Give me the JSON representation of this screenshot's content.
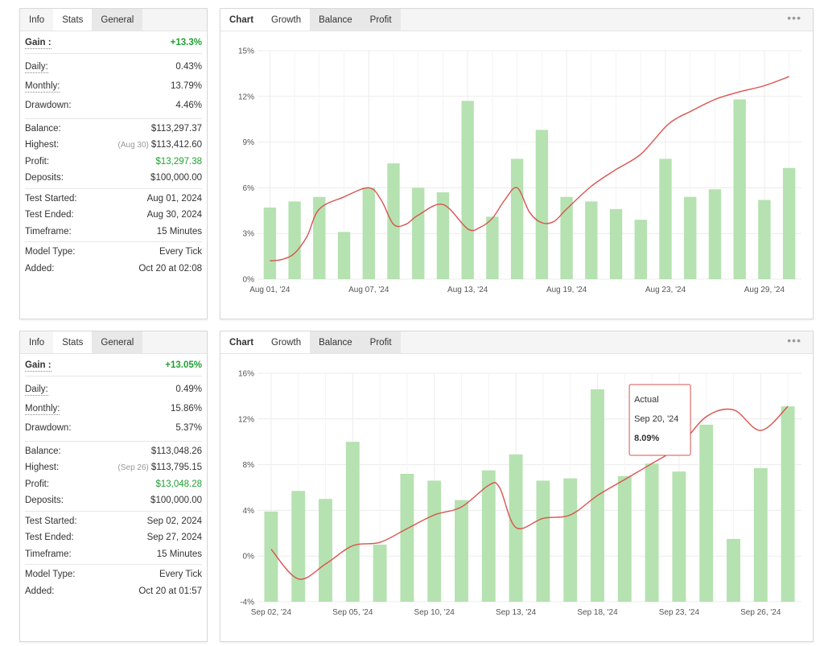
{
  "widgets": [
    {
      "tabs": [
        "Info",
        "Stats",
        "General"
      ],
      "stats": {
        "gain_label": "Gain :",
        "gain_value": "+13.3%",
        "daily_label": "Daily:",
        "daily_value": "0.43%",
        "monthly_label": "Monthly:",
        "monthly_value": "13.79%",
        "drawdown_label": "Drawdown:",
        "drawdown_value": "4.46%",
        "balance_label": "Balance:",
        "balance_value": "$113,297.37",
        "highest_label": "Highest:",
        "highest_date": "(Aug 30)",
        "highest_value": "$113,412.60",
        "profit_label": "Profit:",
        "profit_value": "$13,297.38",
        "deposits_label": "Deposits:",
        "deposits_value": "$100,000.00",
        "started_label": "Test Started:",
        "started_value": "Aug 01, 2024",
        "ended_label": "Test Ended:",
        "ended_value": "Aug 30, 2024",
        "timeframe_label": "Timeframe:",
        "timeframe_value": "15 Minutes",
        "model_label": "Model Type:",
        "model_value": "Every Tick",
        "added_label": "Added:",
        "added_value": "Oct 20 at 02:08"
      },
      "chart_tabs": [
        "Chart",
        "Growth",
        "Balance",
        "Profit"
      ],
      "menu_icon": "more-dots-icon"
    },
    {
      "tabs": [
        "Info",
        "Stats",
        "General"
      ],
      "stats": {
        "gain_label": "Gain :",
        "gain_value": "+13.05%",
        "daily_label": "Daily:",
        "daily_value": "0.49%",
        "monthly_label": "Monthly:",
        "monthly_value": "15.86%",
        "drawdown_label": "Drawdown:",
        "drawdown_value": "5.37%",
        "balance_label": "Balance:",
        "balance_value": "$113,048.26",
        "highest_label": "Highest:",
        "highest_date": "(Sep 26)",
        "highest_value": "$113,795.15",
        "profit_label": "Profit:",
        "profit_value": "$13,048.28",
        "deposits_label": "Deposits:",
        "deposits_value": "$100,000.00",
        "started_label": "Test Started:",
        "started_value": "Sep 02, 2024",
        "ended_label": "Test Ended:",
        "ended_value": "Sep 27, 2024",
        "timeframe_label": "Timeframe:",
        "timeframe_value": "15 Minutes",
        "model_label": "Model Type:",
        "model_value": "Every Tick",
        "added_label": "Added:",
        "added_value": "Oct 20 at 01:57"
      },
      "chart_tabs": [
        "Chart",
        "Growth",
        "Balance",
        "Profit"
      ],
      "menu_icon": "more-dots-icon"
    }
  ],
  "colors": {
    "bar": "#b5e2b0",
    "line": "#d9534f",
    "grid": "#ececec",
    "green_text": "#22a033"
  },
  "chart_data": [
    {
      "type": "bar+line",
      "title": "",
      "ylim": [
        0,
        15
      ],
      "yticks": [
        "0%",
        "3%",
        "6%",
        "9%",
        "12%",
        "15%"
      ],
      "ytick_values": [
        0,
        3,
        6,
        9,
        12,
        15
      ],
      "xtick_labels": [
        "Aug 01, '24",
        "Aug 07, '24",
        "Aug 13, '24",
        "Aug 19, '24",
        "Aug 23, '24",
        "Aug 29, '24"
      ],
      "xtick_indices": [
        0,
        4,
        8,
        12,
        16,
        20
      ],
      "bars": [
        4.7,
        5.1,
        5.4,
        3.1,
        6.0,
        7.6,
        6.0,
        5.7,
        11.7,
        4.1,
        7.9,
        9.8,
        5.4,
        5.1,
        4.6,
        3.9,
        7.9,
        5.4,
        5.9,
        11.8,
        5.2,
        7.3
      ],
      "line_x": [
        0,
        0.5,
        1,
        1.5,
        2,
        3,
        4,
        4.5,
        5,
        5.5,
        6,
        7,
        8,
        8.5,
        9,
        9.5,
        10,
        10.5,
        11,
        11.5,
        12,
        13,
        14,
        15,
        16,
        16.5,
        17,
        18,
        19,
        20,
        21
      ],
      "line_y": [
        1.2,
        1.3,
        1.7,
        2.8,
        4.6,
        5.4,
        6.0,
        5.2,
        3.6,
        3.6,
        4.2,
        4.9,
        3.3,
        3.4,
        4.0,
        5.2,
        6.0,
        4.4,
        3.7,
        3.8,
        4.6,
        6.1,
        7.2,
        8.2,
        10.0,
        10.6,
        11.0,
        11.8,
        12.3,
        12.7,
        13.3
      ],
      "tooltip": null
    },
    {
      "type": "bar+line",
      "title": "",
      "ylim": [
        -4,
        16
      ],
      "yticks": [
        "-4%",
        "0%",
        "4%",
        "8%",
        "12%",
        "16%"
      ],
      "ytick_values": [
        -4,
        0,
        4,
        8,
        12,
        16
      ],
      "xtick_labels": [
        "Sep 02, '24",
        "Sep 05, '24",
        "Sep 10, '24",
        "Sep 13, '24",
        "Sep 18, '24",
        "Sep 23, '24",
        "Sep 26, '24"
      ],
      "xtick_indices": [
        0,
        3,
        6,
        9,
        12,
        15,
        18
      ],
      "bars": [
        3.9,
        5.7,
        5.0,
        10.0,
        1.0,
        7.2,
        6.6,
        4.9,
        7.5,
        8.9,
        6.6,
        6.8,
        14.6,
        7.0,
        8.1,
        7.4,
        11.5,
        1.5,
        7.7,
        13.1
      ],
      "line_x": [
        0,
        1,
        2,
        3,
        4,
        5,
        6,
        7,
        8,
        8.4,
        9,
        10,
        11,
        12,
        13,
        14,
        15,
        16,
        17,
        18,
        19
      ],
      "line_y": [
        0.6,
        -2.0,
        -0.7,
        0.9,
        1.2,
        2.4,
        3.6,
        4.3,
        6.2,
        6.0,
        2.5,
        3.3,
        3.6,
        5.3,
        6.7,
        8.1,
        9.6,
        12.2,
        12.8,
        11.0,
        13.1
      ],
      "tooltip": {
        "index": 14,
        "title": "Actual",
        "date": "Sep 20, '24",
        "value": "8.09%"
      }
    }
  ]
}
